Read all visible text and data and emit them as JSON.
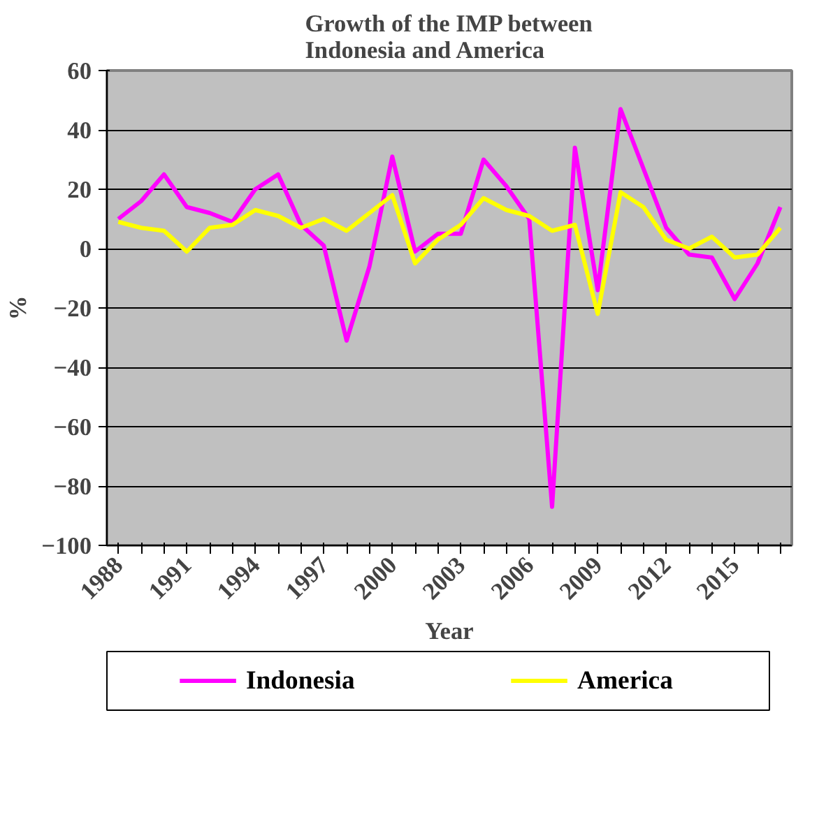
{
  "chart_data": {
    "type": "line",
    "title": "Growth of the IMP between\nIndonesia and America",
    "xlabel": "Year",
    "ylabel": "%",
    "categories": [
      "1988",
      null,
      null,
      "1991",
      null,
      null,
      "1994",
      null,
      null,
      "1997",
      null,
      null,
      "2000",
      null,
      null,
      "2003",
      null,
      null,
      "2006",
      null,
      null,
      "2009",
      null,
      null,
      "2012",
      null,
      null,
      "2015",
      null,
      null
    ],
    "series": [
      {
        "name": "Indonesia",
        "color": "#ff00ff",
        "values": [
          10,
          16,
          25,
          14,
          12,
          9,
          20,
          25,
          8,
          1,
          -31,
          -6,
          31,
          -1,
          5,
          5,
          30,
          21,
          10,
          -87,
          34,
          -14,
          47,
          27,
          7,
          -2,
          -3,
          -17,
          -5,
          14
        ]
      },
      {
        "name": "America",
        "color": "#ffff00",
        "values": [
          9,
          7,
          6,
          -1,
          7,
          8,
          13,
          11,
          7,
          10,
          6,
          12,
          18,
          -5,
          3,
          8,
          17,
          13,
          11,
          6,
          8,
          -22,
          19,
          14,
          3,
          0,
          4,
          -3,
          -2,
          7
        ]
      }
    ],
    "ylim": [
      -100,
      60
    ],
    "yticks": [
      -100,
      -80,
      -60,
      -40,
      -20,
      0,
      20,
      40,
      60
    ],
    "grid": "y",
    "legend": "bottom"
  }
}
